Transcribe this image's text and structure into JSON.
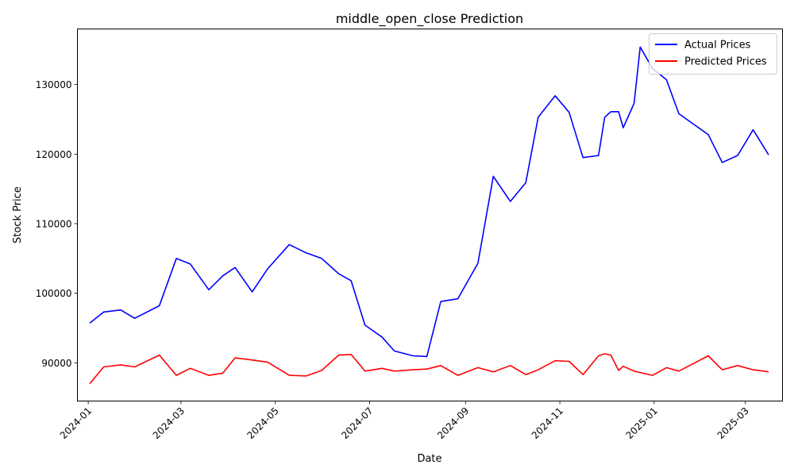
{
  "chart_data": {
    "type": "line",
    "title": "middle_open_close Prediction",
    "xlabel": "Date",
    "ylabel": "Stock Price",
    "x_ticks": [
      "2024-01",
      "2024-03",
      "2024-05",
      "2024-07",
      "2024-09",
      "2024-11",
      "2025-01",
      "2025-03"
    ],
    "y_ticks": [
      90000,
      100000,
      110000,
      120000,
      130000
    ],
    "xlim": [
      "2023-12-25",
      "2025-03-25"
    ],
    "ylim": [
      84500,
      138000
    ],
    "grid": false,
    "legend_position": "top-right",
    "series": [
      {
        "name": "Actual Prices",
        "color": "#0000ff",
        "points": [
          [
            "2024-01-02",
            95700
          ],
          [
            "2024-01-11",
            97300
          ],
          [
            "2024-01-22",
            97600
          ],
          [
            "2024-01-31",
            96400
          ],
          [
            "2024-02-16",
            98200
          ],
          [
            "2024-02-27",
            105000
          ],
          [
            "2024-03-07",
            104200
          ],
          [
            "2024-03-19",
            100500
          ],
          [
            "2024-03-28",
            102500
          ],
          [
            "2024-04-05",
            103700
          ],
          [
            "2024-04-16",
            100200
          ],
          [
            "2024-04-26",
            103500
          ],
          [
            "2024-05-10",
            107000
          ],
          [
            "2024-05-21",
            105800
          ],
          [
            "2024-05-31",
            105000
          ],
          [
            "2024-06-11",
            102800
          ],
          [
            "2024-06-19",
            101800
          ],
          [
            "2024-06-28",
            95400
          ],
          [
            "2024-07-09",
            93700
          ],
          [
            "2024-07-17",
            91700
          ],
          [
            "2024-07-29",
            91000
          ],
          [
            "2024-08-07",
            90900
          ],
          [
            "2024-08-16",
            98800
          ],
          [
            "2024-08-27",
            99200
          ],
          [
            "2024-09-09",
            104300
          ],
          [
            "2024-09-19",
            116800
          ],
          [
            "2024-09-30",
            113200
          ],
          [
            "2024-10-10",
            115900
          ],
          [
            "2024-10-18",
            125300
          ],
          [
            "2024-10-29",
            128400
          ],
          [
            "2024-11-07",
            126000
          ],
          [
            "2024-11-16",
            119500
          ],
          [
            "2024-11-26",
            119800
          ],
          [
            "2024-11-30",
            125300
          ],
          [
            "2024-12-04",
            126100
          ],
          [
            "2024-12-09",
            126100
          ],
          [
            "2024-12-12",
            123800
          ],
          [
            "2024-12-19",
            127300
          ],
          [
            "2024-12-23",
            135400
          ],
          [
            "2024-12-31",
            132300
          ],
          [
            "2025-01-09",
            130700
          ],
          [
            "2025-01-17",
            125800
          ],
          [
            "2025-02-05",
            122800
          ],
          [
            "2025-02-14",
            118800
          ],
          [
            "2025-02-24",
            119800
          ],
          [
            "2025-03-06",
            123500
          ],
          [
            "2025-03-16",
            119900
          ]
        ]
      },
      {
        "name": "Predicted Prices",
        "color": "#ff0000",
        "points": [
          [
            "2024-01-02",
            87000
          ],
          [
            "2024-01-11",
            89400
          ],
          [
            "2024-01-22",
            89700
          ],
          [
            "2024-01-31",
            89400
          ],
          [
            "2024-02-16",
            91100
          ],
          [
            "2024-02-27",
            88200
          ],
          [
            "2024-03-07",
            89200
          ],
          [
            "2024-03-19",
            88200
          ],
          [
            "2024-03-28",
            88500
          ],
          [
            "2024-04-05",
            90700
          ],
          [
            "2024-04-16",
            90400
          ],
          [
            "2024-04-26",
            90100
          ],
          [
            "2024-05-10",
            88200
          ],
          [
            "2024-05-21",
            88100
          ],
          [
            "2024-05-31",
            88900
          ],
          [
            "2024-06-11",
            91100
          ],
          [
            "2024-06-19",
            91200
          ],
          [
            "2024-06-28",
            88800
          ],
          [
            "2024-07-09",
            89200
          ],
          [
            "2024-07-17",
            88800
          ],
          [
            "2024-07-29",
            89000
          ],
          [
            "2024-08-07",
            89100
          ],
          [
            "2024-08-16",
            89600
          ],
          [
            "2024-08-27",
            88200
          ],
          [
            "2024-09-09",
            89300
          ],
          [
            "2024-09-19",
            88700
          ],
          [
            "2024-09-30",
            89600
          ],
          [
            "2024-10-10",
            88300
          ],
          [
            "2024-10-18",
            89000
          ],
          [
            "2024-10-29",
            90300
          ],
          [
            "2024-11-07",
            90200
          ],
          [
            "2024-11-16",
            88300
          ],
          [
            "2024-11-26",
            91000
          ],
          [
            "2024-11-30",
            91300
          ],
          [
            "2024-12-04",
            91100
          ],
          [
            "2024-12-09",
            88900
          ],
          [
            "2024-12-12",
            89500
          ],
          [
            "2024-12-19",
            88800
          ],
          [
            "2024-12-23",
            88600
          ],
          [
            "2024-12-31",
            88200
          ],
          [
            "2025-01-09",
            89300
          ],
          [
            "2025-01-17",
            88800
          ],
          [
            "2025-02-05",
            91000
          ],
          [
            "2025-02-14",
            89000
          ],
          [
            "2025-02-24",
            89600
          ],
          [
            "2025-03-06",
            89000
          ],
          [
            "2025-03-16",
            88700
          ]
        ]
      }
    ]
  }
}
